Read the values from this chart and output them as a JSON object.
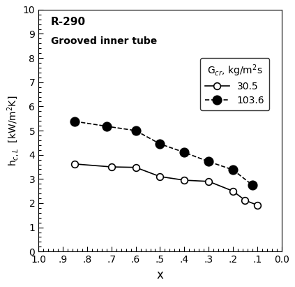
{
  "title1": "R-290",
  "title2": "Grooved inner tube",
  "xlabel": "x",
  "ylabel": "h$_{c,L}$  [kW/m$^{2}$K]",
  "xlim": [
    1.0,
    0.0
  ],
  "ylim": [
    0,
    10
  ],
  "xticks": [
    1.0,
    0.9,
    0.8,
    0.7,
    0.6,
    0.5,
    0.4,
    0.3,
    0.2,
    0.1,
    0.0
  ],
  "xticklabels": [
    "1.0",
    ".9",
    ".8",
    ".7",
    ".6",
    ".5",
    ".4",
    ".3",
    ".2",
    ".1",
    "0.0"
  ],
  "yticks": [
    0,
    1,
    2,
    3,
    4,
    5,
    6,
    7,
    8,
    9,
    10
  ],
  "legend_title": "G$_{cr}$, kg/m$^{2}$s",
  "series1_label": "30.5",
  "series1_x": [
    0.85,
    0.7,
    0.6,
    0.5,
    0.4,
    0.3,
    0.2,
    0.15,
    0.1
  ],
  "series1_y": [
    3.62,
    3.5,
    3.48,
    3.1,
    2.95,
    2.9,
    2.5,
    2.12,
    1.92
  ],
  "series2_label": "103.6",
  "series2_x": [
    0.85,
    0.72,
    0.6,
    0.5,
    0.4,
    0.3,
    0.2,
    0.12
  ],
  "series2_y": [
    5.38,
    5.18,
    5.0,
    4.45,
    4.1,
    3.72,
    3.38,
    2.75
  ],
  "background_color": "#ffffff"
}
